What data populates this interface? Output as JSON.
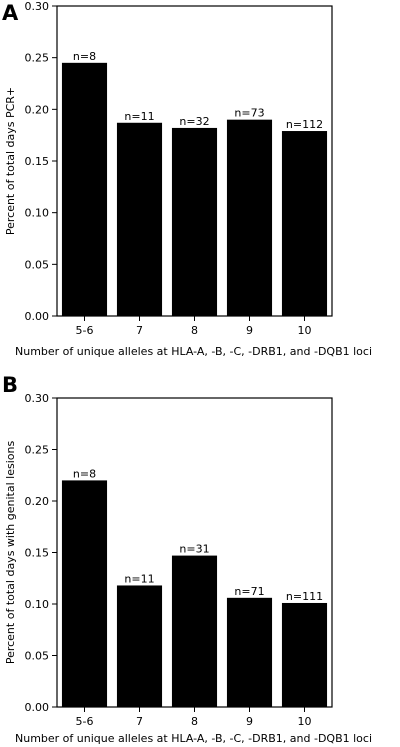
{
  "chart_data": [
    {
      "panel": "A",
      "type": "bar",
      "categories": [
        "5-6",
        "7",
        "8",
        "9",
        "10"
      ],
      "values": [
        0.245,
        0.187,
        0.182,
        0.19,
        0.179
      ],
      "data_labels": [
        "n=8",
        "n=11",
        "n=32",
        "n=73",
        "n=112"
      ],
      "xlabel": "Number of unique alleles at HLA-A, -B, -C, -DRB1, and -DQB1 loci",
      "ylabel": "Percent of total days PCR+",
      "ylim": [
        0,
        0.3
      ],
      "yticks": [
        "0.00",
        "0.05",
        "0.10",
        "0.15",
        "0.20",
        "0.25",
        "0.30"
      ],
      "bar_color": "#000000",
      "grid": false
    },
    {
      "panel": "B",
      "type": "bar",
      "categories": [
        "5-6",
        "7",
        "8",
        "9",
        "10"
      ],
      "values": [
        0.22,
        0.118,
        0.147,
        0.106,
        0.101
      ],
      "data_labels": [
        "n=8",
        "n=11",
        "n=31",
        "n=71",
        "n=111"
      ],
      "xlabel": "Number of unique alleles at HLA-A, -B, -C, -DRB1, and -DQB1 loci",
      "ylabel": "Percent of total days with genital lesions",
      "ylim": [
        0,
        0.3
      ],
      "yticks": [
        "0.00",
        "0.05",
        "0.10",
        "0.15",
        "0.20",
        "0.25",
        "0.30"
      ],
      "bar_color": "#000000",
      "grid": false
    }
  ]
}
